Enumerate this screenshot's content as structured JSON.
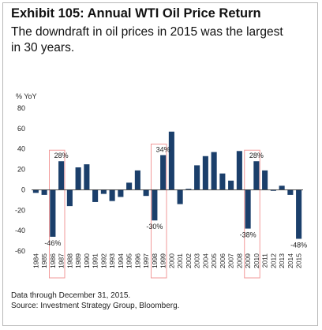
{
  "title": "Exhibit 105: Annual WTI Oil Price Return",
  "subtitle": "The downdraft in oil prices in 2015 was the largest in 30 years.",
  "footnote": "Data through December 31, 2015.",
  "source": "Source: Investment Strategy Group, Bloomberg.",
  "colors": {
    "bar": "#1b3f6b",
    "highlight_box": "#f29a9a",
    "axis": "#333333"
  },
  "chart_data": {
    "type": "bar",
    "title": "Exhibit 105: Annual WTI Oil Price Return",
    "ylabel": "% YoY",
    "xlabel": "",
    "ylim": [
      -60,
      80
    ],
    "yticks": [
      -60,
      -40,
      -20,
      0,
      20,
      40,
      60,
      80
    ],
    "grid": false,
    "categories": [
      "1984",
      "1985",
      "1986",
      "1987",
      "1988",
      "1989",
      "1990",
      "1991",
      "1992",
      "1993",
      "1994",
      "1995",
      "1996",
      "1997",
      "1998",
      "1999",
      "2000",
      "2001",
      "2002",
      "2003",
      "2004",
      "2005",
      "2006",
      "2007",
      "2008",
      "2009",
      "2010",
      "2011",
      "2012",
      "2013",
      "2014",
      "2015"
    ],
    "values": [
      -3,
      -5,
      -46,
      28,
      -16,
      22,
      25,
      -12,
      -4,
      -11,
      -7,
      7,
      19,
      -6,
      -30,
      34,
      57,
      -14,
      1,
      24,
      33,
      37,
      16,
      9,
      38,
      -38,
      28,
      19,
      -1,
      4,
      -5,
      -48
    ],
    "annotations": [
      {
        "category": "1986",
        "label": "-46%"
      },
      {
        "category": "1987",
        "label": "28%"
      },
      {
        "category": "1998",
        "label": "-30%"
      },
      {
        "category": "1999",
        "label": "34%"
      },
      {
        "category": "2009",
        "label": "-38%"
      },
      {
        "category": "2010",
        "label": "28%"
      },
      {
        "category": "2015",
        "label": "-48%"
      }
    ],
    "highlight_groups": [
      [
        "1986",
        "1987"
      ],
      [
        "1998",
        "1999"
      ],
      [
        "2009",
        "2010"
      ]
    ]
  }
}
